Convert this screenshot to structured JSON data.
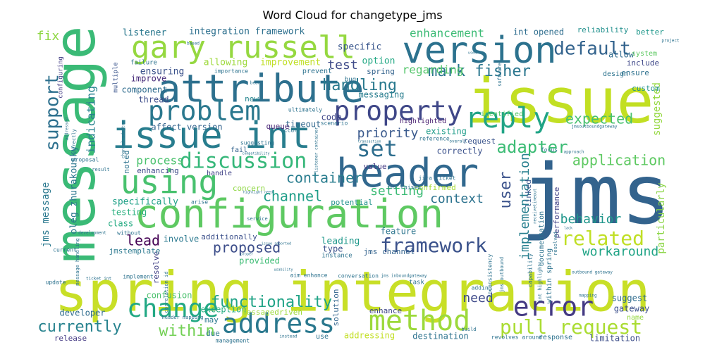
{
  "title": "Word Cloud for changetype_jms",
  "words": [
    {
      "text": "spring integration",
      "color": "#c8df27"
    },
    {
      "text": "jms",
      "color": "#33638d"
    },
    {
      "text": "issue",
      "color": "#c2df23"
    },
    {
      "text": "message",
      "color": "#3aba76"
    },
    {
      "text": "configuration",
      "color": "#5ec962"
    },
    {
      "text": "header",
      "color": "#31688e"
    },
    {
      "text": "attribute",
      "color": "#2d708e"
    },
    {
      "text": "issue int",
      "color": "#287d8e"
    },
    {
      "text": "version",
      "color": "#2c728e"
    },
    {
      "text": "gary russell",
      "color": "#95d840"
    },
    {
      "text": "property",
      "color": "#3f4788"
    },
    {
      "text": "problem",
      "color": "#2a788e"
    },
    {
      "text": "using",
      "color": "#48c16e"
    },
    {
      "text": "reply",
      "color": "#20a486"
    },
    {
      "text": "change",
      "color": "#22a884"
    },
    {
      "text": "address",
      "color": "#2a788e"
    },
    {
      "text": "method",
      "color": "#9cd93b"
    },
    {
      "text": "error",
      "color": "#443a83"
    },
    {
      "text": "framework",
      "color": "#3b528b"
    },
    {
      "text": "set",
      "color": "#2e6e8e"
    },
    {
      "text": "pull request",
      "color": "#aadc32"
    },
    {
      "text": "support",
      "color": "#2d708e"
    },
    {
      "text": "discussion",
      "color": "#35b779"
    },
    {
      "text": "related",
      "color": "#c0df25"
    },
    {
      "text": "default",
      "color": "#33638d"
    },
    {
      "text": "adapter",
      "color": "#3cbc75"
    },
    {
      "text": "mark fisher",
      "color": "#2a768e"
    },
    {
      "text": "handling",
      "color": "#29798e"
    },
    {
      "text": "functionality",
      "color": "#20a386"
    },
    {
      "text": "currently",
      "color": "#26828e"
    },
    {
      "text": "within",
      "color": "#73d055"
    },
    {
      "text": "proposed",
      "color": "#3d4e8a"
    },
    {
      "text": "channel",
      "color": "#1f9e89"
    },
    {
      "text": "container",
      "color": "#287c8e"
    },
    {
      "text": "expected",
      "color": "#48c16e"
    },
    {
      "text": "application",
      "color": "#5ec962"
    },
    {
      "text": "implementation",
      "color": "#277f8e"
    },
    {
      "text": "user",
      "color": "#3b528b"
    },
    {
      "text": "behavior",
      "color": "#1f968b"
    },
    {
      "text": "workaround",
      "color": "#20a486"
    },
    {
      "text": "context",
      "color": "#2c728e"
    },
    {
      "text": "setting",
      "color": "#3bbb75"
    },
    {
      "text": "priority",
      "color": "#38588c"
    },
    {
      "text": "process",
      "color": "#4ac16d"
    },
    {
      "text": "lead",
      "color": "#440154"
    },
    {
      "text": "fix",
      "color": "#8fd744"
    },
    {
      "text": "test",
      "color": "#3e4a89"
    },
    {
      "text": "enhancement",
      "color": "#3cbb75"
    },
    {
      "text": "regarding",
      "color": "#52c569"
    },
    {
      "text": "indicating",
      "color": "#26818e"
    },
    {
      "text": "suggested",
      "color": "#95d840"
    },
    {
      "text": "jms message",
      "color": "#2a788e"
    },
    {
      "text": "oleg zhurakousky",
      "color": "#2a778e"
    },
    {
      "text": "need",
      "color": "#3e4989"
    },
    {
      "text": "particularly",
      "color": "#8bd646"
    },
    {
      "text": "integration framework",
      "color": "#2d708e"
    },
    {
      "text": "listener",
      "color": "#2a788e"
    },
    {
      "text": "int opened",
      "color": "#2e6d8e"
    },
    {
      "text": "reliability",
      "color": "#21908d"
    },
    {
      "text": "better",
      "color": "#1f988b"
    },
    {
      "text": "allow",
      "color": "#2f6b8e"
    },
    {
      "text": "specific",
      "color": "#39568c"
    },
    {
      "text": "option",
      "color": "#22a884"
    },
    {
      "text": "allowing",
      "color": "#9dd93b"
    },
    {
      "text": "improvement",
      "color": "#c0df25"
    },
    {
      "text": "ensuring",
      "color": "#3b528b"
    },
    {
      "text": "component",
      "color": "#2f6c8e"
    },
    {
      "text": "improve",
      "color": "#472c7a"
    },
    {
      "text": "thread",
      "color": "#3d4d8a"
    },
    {
      "text": "affect version",
      "color": "#33638d"
    },
    {
      "text": "timeout",
      "color": "#31688e"
    },
    {
      "text": "spring",
      "color": "#33628d"
    },
    {
      "text": "messaging",
      "color": "#287d8e"
    },
    {
      "text": "new",
      "color": "#25858e"
    },
    {
      "text": "code",
      "color": "#3f4788"
    },
    {
      "text": "queue",
      "color": "#482677"
    },
    {
      "text": "highlighted",
      "color": "#481f70"
    },
    {
      "text": "identified",
      "color": "#56c667"
    },
    {
      "text": "existing",
      "color": "#1e9c89"
    },
    {
      "text": "request",
      "color": "#3a548c"
    },
    {
      "text": "correctly",
      "color": "#3b518b"
    },
    {
      "text": "value",
      "color": "#443b84"
    },
    {
      "text": "custom",
      "color": "#21918c"
    },
    {
      "text": "ensure",
      "color": "#2d718e"
    },
    {
      "text": "system",
      "color": "#5ec962"
    },
    {
      "text": "include",
      "color": "#3f4889"
    },
    {
      "text": "design",
      "color": "#2c738e"
    },
    {
      "text": "enhancing",
      "color": "#3e4a89"
    },
    {
      "text": "handle",
      "color": "#404387"
    },
    {
      "text": "noted",
      "color": "#2c728e"
    },
    {
      "text": "specifically",
      "color": "#1fa187"
    },
    {
      "text": "testing",
      "color": "#2ab07f"
    },
    {
      "text": "class",
      "color": "#25ab82"
    },
    {
      "text": "involve",
      "color": "#2a788e"
    },
    {
      "text": "additionally",
      "color": "#3c508b"
    },
    {
      "text": "concern",
      "color": "#8fd744"
    },
    {
      "text": "potential",
      "color": "#21918c"
    },
    {
      "text": "leading",
      "color": "#1f988b"
    },
    {
      "text": "type",
      "color": "#3b528b"
    },
    {
      "text": "feature",
      "color": "#2b748e"
    },
    {
      "text": "jms channel",
      "color": "#33638d"
    },
    {
      "text": "provided",
      "color": "#3dbc74"
    },
    {
      "text": "solution",
      "color": "#32658e"
    },
    {
      "text": "exception",
      "color": "#28ae80"
    },
    {
      "text": "developer",
      "color": "#2f6c8e"
    },
    {
      "text": "confusion",
      "color": "#4ac16d"
    },
    {
      "text": "may",
      "color": "#2a788e"
    },
    {
      "text": "due",
      "color": "#2a788e"
    },
    {
      "text": "messagedriven",
      "color": "#9dd93b"
    },
    {
      "text": "enhance",
      "color": "#3f4788"
    },
    {
      "text": "destination",
      "color": "#2c728e"
    },
    {
      "text": "release",
      "color": "#443983"
    },
    {
      "text": "addressing",
      "color": "#c2df23"
    },
    {
      "text": "limitation",
      "color": "#3d4e8a"
    },
    {
      "text": "suggest",
      "color": "#2f6c8e"
    },
    {
      "text": "gateway",
      "color": "#3c508b"
    },
    {
      "text": "name",
      "color": "#95d840"
    },
    {
      "text": "performance",
      "color": "#414287"
    },
    {
      "text": "documentation",
      "color": "#2c728e"
    },
    {
      "text": "linked",
      "color": "#39568c"
    },
    {
      "text": "resolve",
      "color": "#424186"
    },
    {
      "text": "confirmed",
      "color": "#a5db36"
    },
    {
      "text": "int raised",
      "color": "#2c728e"
    },
    {
      "text": "jira ticket",
      "color": "#2c728e"
    },
    {
      "text": "jmstemplate",
      "color": "#2a788e"
    },
    {
      "text": "configuring",
      "color": "#433d84"
    },
    {
      "text": "multiple",
      "color": "#3a548c"
    },
    {
      "text": "failure",
      "color": "#2c728e"
    },
    {
      "text": "importance",
      "color": "#2c728e"
    },
    {
      "text": "prevent",
      "color": "#2c728e"
    },
    {
      "text": "bug",
      "color": "#2c728e"
    },
    {
      "text": "occur",
      "color": "#2c728e"
    },
    {
      "text": "suggesting",
      "color": "#2c728e"
    },
    {
      "text": "fail",
      "color": "#33638d"
    },
    {
      "text": "ultimately",
      "color": "#2c728e"
    },
    {
      "text": "scenario",
      "color": "#2c728e"
    },
    {
      "text": "software",
      "color": "#2c728e"
    },
    {
      "text": "focus",
      "color": "#2c728e"
    },
    {
      "text": "approach",
      "color": "#2c728e"
    },
    {
      "text": "reference",
      "color": "#2c728e"
    },
    {
      "text": "overall",
      "color": "#2c728e"
    },
    {
      "text": "proposal",
      "color": "#2c728e"
    },
    {
      "text": "update",
      "color": "#2c728e"
    },
    {
      "text": "result",
      "color": "#2c728e"
    },
    {
      "text": "arise",
      "color": "#2c728e"
    },
    {
      "text": "service",
      "color": "#2c728e"
    },
    {
      "text": "development",
      "color": "#2c728e"
    },
    {
      "text": "without",
      "color": "#2c728e"
    },
    {
      "text": "current",
      "color": "#2c728e"
    },
    {
      "text": "message handling",
      "color": "#2c728e"
    },
    {
      "text": "header mapping",
      "color": "#2c728e"
    },
    {
      "text": "implement",
      "color": "#2c728e"
    },
    {
      "text": "int highlight",
      "color": "#2c728e"
    },
    {
      "text": "capability",
      "color": "#2c728e"
    },
    {
      "text": "jms inboundgateway",
      "color": "#2c728e"
    },
    {
      "text": "jms outbound",
      "color": "#2c728e"
    },
    {
      "text": "inconsistency",
      "color": "#2c728e"
    },
    {
      "text": "adding",
      "color": "#2c728e"
    },
    {
      "text": "task",
      "color": "#2c728e"
    },
    {
      "text": "conversation",
      "color": "#2c728e"
    },
    {
      "text": "instance",
      "color": "#2c728e"
    },
    {
      "text": "aim enhance",
      "color": "#2c728e"
    },
    {
      "text": "within spring",
      "color": "#2c728e"
    },
    {
      "text": "resolved",
      "color": "#2c728e"
    },
    {
      "text": "mapping",
      "color": "#2c728e"
    },
    {
      "text": "outbound gateway",
      "color": "#2c728e"
    },
    {
      "text": "build",
      "color": "#2c728e"
    },
    {
      "text": "revolves around",
      "color": "#2c728e"
    },
    {
      "text": "response",
      "color": "#2c728e"
    },
    {
      "text": "management",
      "color": "#2c728e"
    },
    {
      "text": "instead",
      "color": "#2c728e"
    },
    {
      "text": "use",
      "color": "#2c728e"
    },
    {
      "text": "ticket int",
      "color": "#2c728e"
    },
    {
      "text": "correlation id",
      "color": "#2c728e"
    },
    {
      "text": "directly",
      "color": "#2c728e"
    },
    {
      "text": "addressed",
      "color": "#2c728e"
    },
    {
      "text": "channel adapter",
      "color": "#2c728e"
    },
    {
      "text": "bean",
      "color": "#2c728e"
    },
    {
      "text": "based",
      "color": "#2c728e"
    },
    {
      "text": "used",
      "color": "#2c728e"
    },
    {
      "text": "project",
      "color": "#2c728e"
    },
    {
      "text": "jmsoutboundgateway",
      "color": "#2c728e"
    },
    {
      "text": "receivetimeout",
      "color": "#2c728e"
    },
    {
      "text": "lack",
      "color": "#2c728e"
    },
    {
      "text": "issue reported",
      "color": "#2c728e"
    },
    {
      "text": "proper",
      "color": "#2c728e"
    },
    {
      "text": "usability",
      "color": "#2c728e"
    },
    {
      "text": "listener container",
      "color": "#2c728e"
    },
    {
      "text": "transaction",
      "color": "#2c728e"
    },
    {
      "text": "compatibility",
      "color": "#2c728e"
    },
    {
      "text": "highlight need",
      "color": "#2c728e"
    }
  ]
}
